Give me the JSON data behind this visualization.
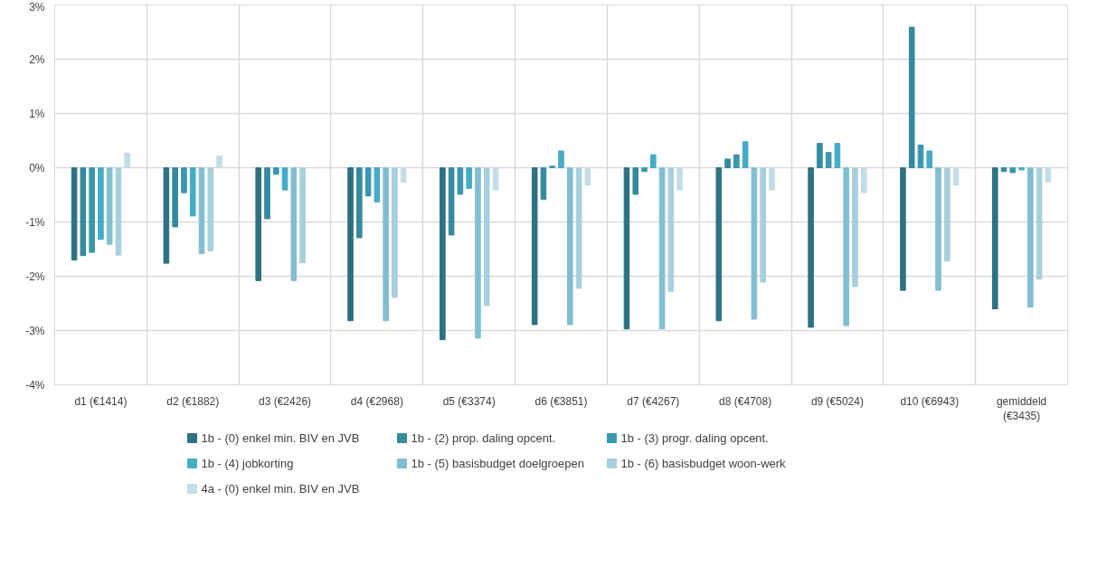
{
  "chart_data": {
    "type": "bar",
    "categories": [
      "d1 (€1414)",
      "d2 (€1882)",
      "d3 (€2426)",
      "d4 (€2968)",
      "d5 (€3374)",
      "d6 (€3851)",
      "d7 (€4267)",
      "d8 (€4708)",
      "d9 (€5024)",
      "d10 (€6943)",
      "gemiddeld (€3435)"
    ],
    "series": [
      {
        "name": "1b - (0) enkel min. BIV en JVB",
        "color": "#2e7182",
        "values": [
          -1.7,
          -1.76,
          -2.08,
          -2.82,
          -3.17,
          -2.89,
          -2.97,
          -2.82,
          -2.94,
          -2.26,
          -2.6
        ]
      },
      {
        "name": "1b - (2) prop. daling opcent.",
        "color": "#358a9f",
        "values": [
          -1.62,
          -1.09,
          -0.94,
          -1.29,
          -1.24,
          -0.58,
          -0.49,
          0.16,
          0.45,
          2.59,
          -0.07
        ]
      },
      {
        "name": "1b - (3) progr. daling opcent.",
        "color": "#3a97ae",
        "values": [
          -1.56,
          -0.46,
          -0.12,
          -0.52,
          -0.49,
          0.03,
          -0.07,
          0.24,
          0.28,
          0.42,
          -0.09
        ]
      },
      {
        "name": "1b - (4) jobkorting",
        "color": "#45acc6",
        "values": [
          -1.32,
          -0.89,
          -0.41,
          -0.63,
          -0.38,
          0.31,
          0.24,
          0.48,
          0.45,
          0.31,
          -0.04
        ]
      },
      {
        "name": "1b - (5) basisbudget doelgroepen",
        "color": "#83bdd0",
        "values": [
          -1.41,
          -1.58,
          -2.08,
          -2.82,
          -3.14,
          -2.89,
          -2.97,
          -2.79,
          -2.91,
          -2.26,
          -2.57
        ]
      },
      {
        "name": "1b - (6) basisbudget woon-werk",
        "color": "#a8cfdc",
        "values": [
          -1.61,
          -1.53,
          -1.75,
          -2.39,
          -2.54,
          -2.22,
          -2.28,
          -2.11,
          -2.19,
          -1.72,
          -2.05
        ]
      },
      {
        "name": "4a - (0) enkel min. BIV en JVB",
        "color": "#c3dde6",
        "values": [
          0.27,
          0.22,
          0.0,
          -0.27,
          -0.41,
          -0.32,
          -0.41,
          -0.41,
          -0.46,
          -0.32,
          -0.26
        ]
      }
    ],
    "ylim": [
      -4,
      3
    ],
    "yticks": [
      {
        "value": -4,
        "label": "-4%"
      },
      {
        "value": -3,
        "label": "-3%"
      },
      {
        "value": -2,
        "label": "-2%"
      },
      {
        "value": -1,
        "label": "-1%"
      },
      {
        "value": 0,
        "label": "0%"
      },
      {
        "value": 1,
        "label": "1%"
      },
      {
        "value": 2,
        "label": "2%"
      },
      {
        "value": 3,
        "label": "3%"
      }
    ],
    "grid": true,
    "legend": "bottom"
  }
}
